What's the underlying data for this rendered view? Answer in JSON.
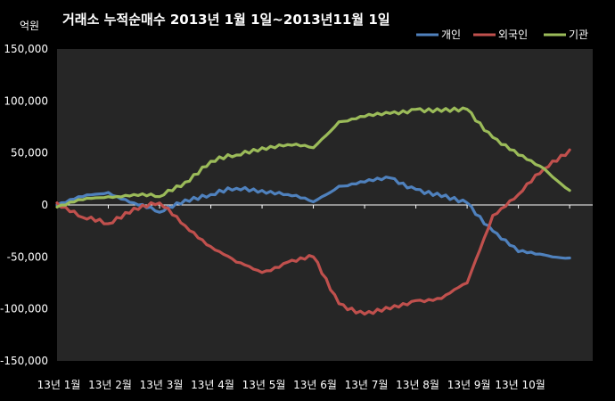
{
  "chart_data": {
    "type": "line",
    "title": "거래소  누적순매수 2013년 1월 1일~2013년11월 1일",
    "ylabel": "억원",
    "xlabel": "",
    "ylim": [
      -150000,
      150000
    ],
    "yticks": [
      "150,000",
      "100,000",
      "50,000",
      "0",
      "-50,000",
      "-100,000",
      "-150,000"
    ],
    "ytick_values": [
      150000,
      100000,
      50000,
      0,
      -50000,
      -100000,
      -150000
    ],
    "xticks": [
      "13년 1월",
      "13년 2월",
      "13년 3월",
      "13년 4월",
      "13년 5월",
      "13년 6월",
      "13년 7월",
      "13년 8월",
      "13년 9월",
      "13년 10월"
    ],
    "x_months": [
      0,
      0.5,
      1,
      1.5,
      2,
      2.5,
      3,
      3.5,
      4,
      4.5,
      5,
      5.5,
      6,
      6.5,
      7,
      7.5,
      8,
      8.5,
      9,
      9.5,
      10
    ],
    "legend_position": "top-right",
    "grid": false,
    "series": [
      {
        "name": "개인",
        "color": "#4f81bd",
        "values": [
          0,
          8000,
          12000,
          2000,
          -7000,
          5000,
          10000,
          16000,
          14000,
          10000,
          3000,
          18000,
          22000,
          26000,
          15000,
          8000,
          2000,
          -25000,
          -45000,
          -48000,
          -51000
        ]
      },
      {
        "name": "외국인",
        "color": "#c0504d",
        "values": [
          2000,
          -12000,
          -18000,
          -3000,
          2000,
          -20000,
          -40000,
          -55000,
          -65000,
          -55000,
          -50000,
          -95000,
          -105000,
          -100000,
          -92000,
          -90000,
          -75000,
          -10000,
          10000,
          35000,
          53000
        ]
      },
      {
        "name": "기관",
        "color": "#9bbb59",
        "values": [
          -2000,
          5000,
          8000,
          10000,
          8000,
          22000,
          42000,
          48000,
          55000,
          58000,
          55000,
          80000,
          85000,
          88000,
          92000,
          90000,
          92000,
          65000,
          48000,
          35000,
          14000
        ]
      }
    ]
  }
}
